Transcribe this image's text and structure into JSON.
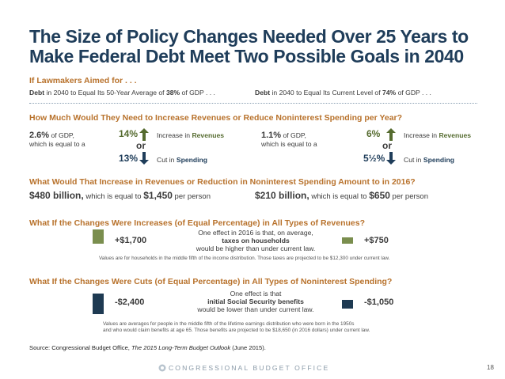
{
  "title": {
    "line1": "The Size of Policy Changes Needed Over 25 Years to",
    "line2": "Make Federal Debt Meet Two Possible Goals in 2040"
  },
  "section1": {
    "heading": "If Lawmakers Aimed for . . .",
    "left_pre": "Debt",
    "left_mid": " in 2040 to Equal Its 50-Year Average of ",
    "left_pct": "38%",
    "left_post": " of GDP . . .",
    "right_pre": "Debt",
    "right_mid": " in 2040 to Equal Its Current Level of ",
    "right_pct": "74%",
    "right_post": " of GDP . . ."
  },
  "section2": {
    "heading": "How Much Would They Need to Increase Revenues or Reduce Noninterest Spending per Year?",
    "left": {
      "gdp": "2.6%",
      "gdp_text": " of GDP,",
      "equal_text": "which is equal to a",
      "up_pct": "14%",
      "or": "or",
      "down_pct": "13%",
      "up_label_pre": "Increase in ",
      "up_label_bold": "Revenues",
      "down_label_pre": "Cut in ",
      "down_label_bold": "Spending"
    },
    "right": {
      "gdp": "1.1%",
      "gdp_text": " of GDP,",
      "equal_text": "which is equal to a",
      "up_pct": "6%",
      "or": "or",
      "down_pct": "5½%",
      "up_label_pre": "Increase in ",
      "up_label_bold": "Revenues",
      "down_label_pre": "Cut in ",
      "down_label_bold": "Spending"
    }
  },
  "section3": {
    "heading": "What Would That Increase in Revenues or Reduction in Noninterest Spending Amount to in 2016?",
    "left_amount": "$480 billion,",
    "left_mid": " which is equal to ",
    "left_per": "$1,450",
    "left_post": " per person",
    "right_amount": "$210 billion,",
    "right_mid": " which is equal to ",
    "right_per": "$650",
    "right_post": " per person"
  },
  "section4": {
    "heading": "What If the Changes Were Increases (of Equal Percentage) in All Types of Revenues?",
    "left_value": "+$1,700",
    "right_value": "+$750",
    "effect_line1": "One effect in 2016 is that, on average,",
    "effect_line2": "taxes on households",
    "effect_line3": "would be higher than under current law.",
    "note": "Values are for households in the middle fifth of the income distribution. Those taxes are projected to be $12,300 under current law.",
    "left_fill_ratio": 1.0,
    "right_fill_ratio": 0.44
  },
  "section5": {
    "heading": "What If the Changes Were Cuts (of Equal Percentage) in All Types of Noninterest Spending?",
    "left_value": "-$2,400",
    "right_value": "-$1,050",
    "effect_line1": "One effect is that",
    "effect_line2": "initial Social Security benefits",
    "effect_line3": "would be lower than under current law.",
    "note_line1": "Values are averages for people in the middle fifth of the lifetime earnings distribution who were born in the 1950s",
    "note_line2": "and who would claim benefits at age 65. Those benefits are projected to be $18,650 (in 2016 dollars) under current law.",
    "left_fill_ratio": 1.0,
    "right_fill_ratio": 0.44
  },
  "source": {
    "prefix": "Source: Congressional Budget Office, ",
    "italic": "The 2015 Long-Term Budget Outlook",
    "suffix": " (June 2015)."
  },
  "footer": {
    "org": "CONGRESSIONAL BUDGET OFFICE",
    "page": "18"
  },
  "colors": {
    "navy": "#1f3d5a",
    "orange": "#b8722c",
    "green": "#556b2f",
    "olive_bar": "#7a8e4e",
    "dark_bar": "#1e3a52"
  },
  "icons": {
    "up": "up-arrow-icon",
    "down": "down-arrow-icon",
    "seal": "cbo-seal-icon"
  }
}
